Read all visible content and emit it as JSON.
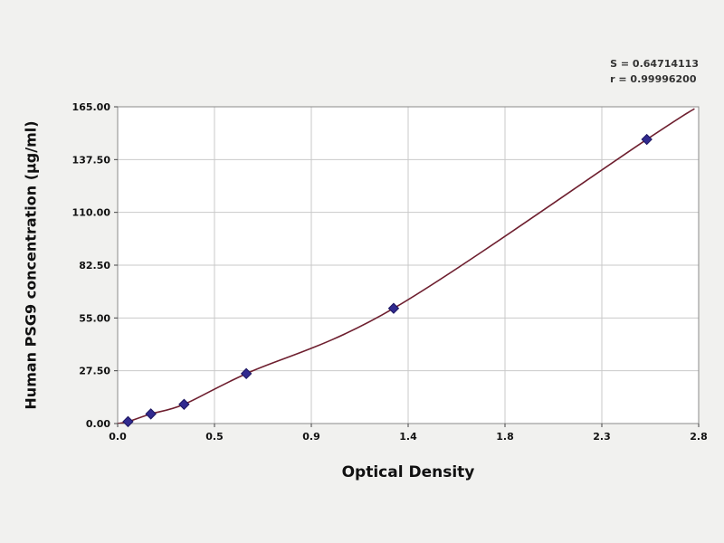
{
  "chart_data": {
    "type": "scatter",
    "title": "",
    "xlabel": "Optical Density",
    "ylabel": "Human PSG9 concentration (µg/ml)",
    "xlim": [
      0,
      2.8
    ],
    "ylim": [
      0,
      165
    ],
    "x_tick_labels": [
      "0.0",
      "0.5",
      "0.9",
      "1.4",
      "1.8",
      "2.3",
      "2.8"
    ],
    "y_tick_labels": [
      "0.00",
      "27.50",
      "55.00",
      "82.50",
      "110.00",
      "137.50",
      "165.00"
    ],
    "grid": true,
    "legend_position": "none",
    "annotations": {
      "s": "S = 0.64714113",
      "r": "r = 0.99996200"
    },
    "series": [
      {
        "name": "standard-curve-points",
        "points": [
          [
            0.05,
            1
          ],
          [
            0.16,
            5
          ],
          [
            0.32,
            10
          ],
          [
            0.62,
            26
          ],
          [
            1.33,
            60
          ],
          [
            2.55,
            148
          ]
        ]
      }
    ],
    "curve_points": [
      [
        0.0,
        0
      ],
      [
        0.05,
        1
      ],
      [
        0.16,
        5
      ],
      [
        0.32,
        10
      ],
      [
        0.62,
        26
      ],
      [
        1.33,
        60
      ],
      [
        2.55,
        148
      ],
      [
        2.78,
        164
      ]
    ],
    "colors": {
      "curve": "#6e1f2f",
      "marker": "#312a8f",
      "marker_edge": "#1c1660",
      "grid": "#c9c9c9",
      "axis": "#8a8a8a",
      "tick": "#444444",
      "plot_bg": "#ffffff",
      "page_bg": "#f1f1ef",
      "text": "#111111"
    }
  }
}
